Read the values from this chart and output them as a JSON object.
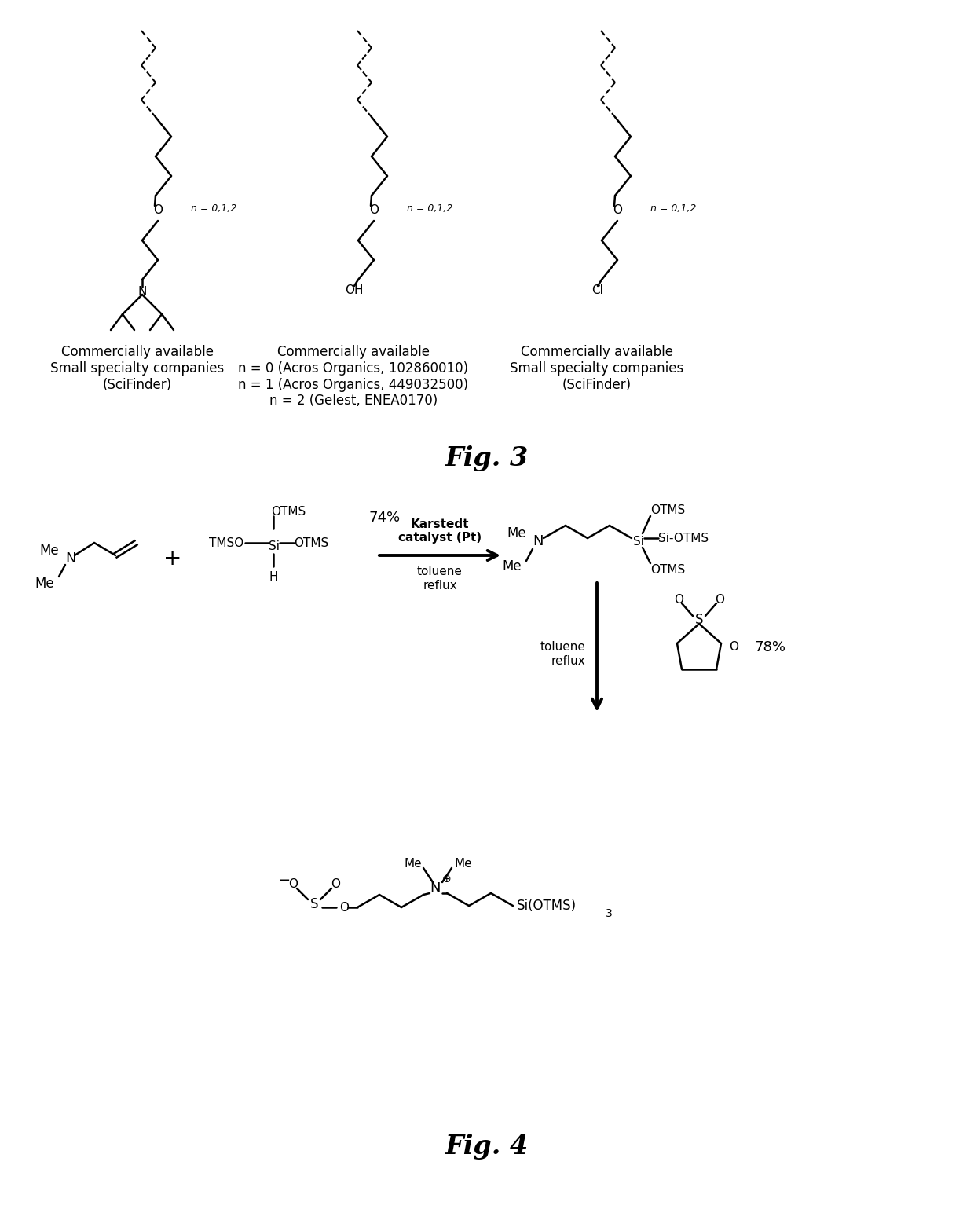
{
  "fig_width": 12.4,
  "fig_height": 15.39,
  "background_color": "#ffffff",
  "fig3_label": "Fig. 3",
  "fig4_label": "Fig. 4",
  "text_color": "#000000",
  "label_fontsize": 24,
  "body_fontsize": 13,
  "small_fontsize": 12,
  "caption1_left": "Commercially available\nSmall specialty companies\n(SciFinder)",
  "caption2_center": "Commercially available\nn = 0 (Acros Organics, 102860010)\nn = 1 (Acros Organics, 449032500)\nn = 2 (Gelest, ENEA0170)",
  "caption3_right": "Commercially available\nSmall specialty companies\n(SciFinder)",
  "yield1": "74%",
  "yield2": "78%",
  "reagent1_line1": "Karstedt",
  "reagent1_line2": "catalyst (Pt)",
  "reagent2": "toluene\nreflux",
  "reagent3": "toluene\nreflux"
}
